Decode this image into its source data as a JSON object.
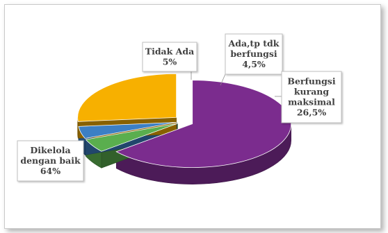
{
  "chart_data": {
    "type": "pie",
    "style": "3d-exploded",
    "title": "",
    "slices": [
      {
        "label": "Dikelola dengan baik",
        "value": 64,
        "value_label": "64%",
        "color": "#7b2c8e"
      },
      {
        "label": "Tidak Ada",
        "value": 5,
        "value_label": "5%",
        "color": "#5aae4e"
      },
      {
        "label": "Ada,tp tdk berfungsi",
        "value": 4.5,
        "value_label": "4,5%",
        "color": "#3c7fc4"
      },
      {
        "label": "Berfungsi kurang maksimal",
        "value": 26.5,
        "value_label": "26,5%",
        "color": "#f7b000"
      }
    ],
    "data_labels": [
      {
        "slice": 0,
        "lines": [
          "Dikelola",
          "dengan baik",
          "64%"
        ]
      },
      {
        "slice": 1,
        "lines": [
          "Tidak Ada",
          "5%"
        ]
      },
      {
        "slice": 2,
        "lines": [
          "Ada,tp tdk",
          "berfungsi",
          "4,5%"
        ]
      },
      {
        "slice": 3,
        "lines": [
          "Berfungsi",
          "kurang",
          "maksimal",
          "26,5%"
        ]
      }
    ],
    "legend": "none"
  }
}
